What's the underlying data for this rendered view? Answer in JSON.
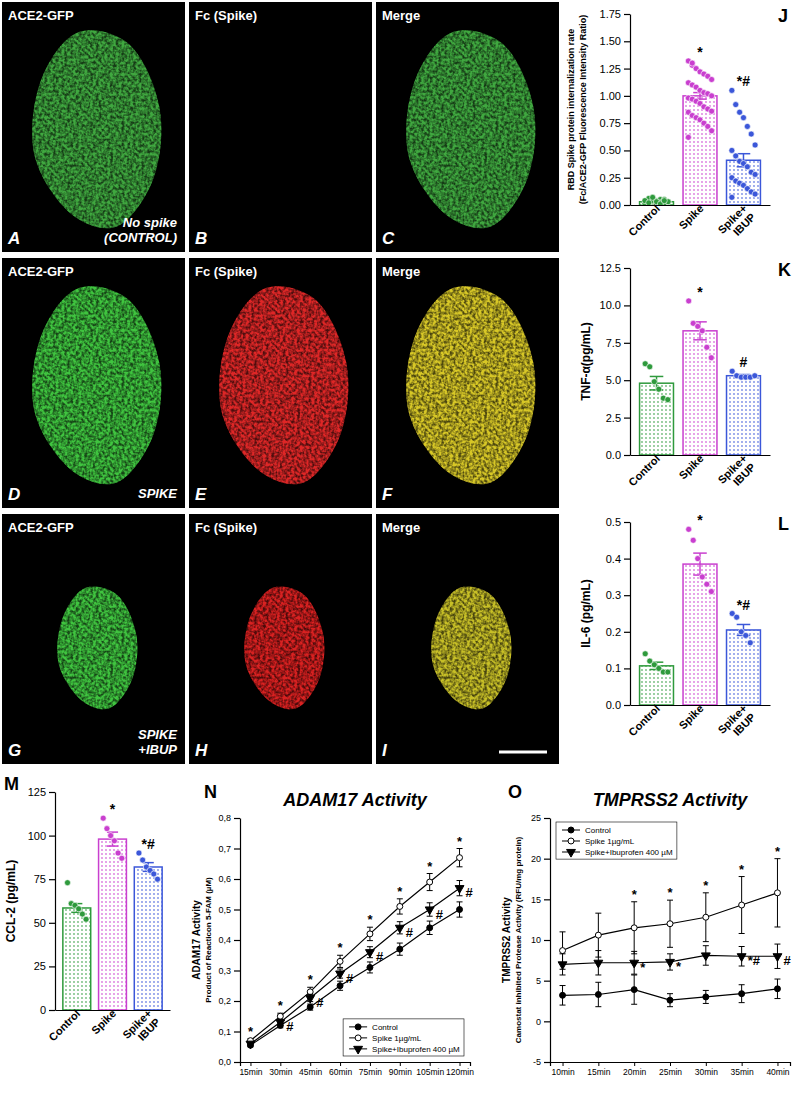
{
  "image_panels": [
    {
      "letter": "A",
      "channel": "ACE2-GFP",
      "caption": "No spike\n(CONTROL)"
    },
    {
      "letter": "B",
      "channel": "Fc (Spike)"
    },
    {
      "letter": "C",
      "channel": "Merge"
    },
    {
      "letter": "D",
      "channel": "ACE2-GFP",
      "caption": "SPIKE"
    },
    {
      "letter": "E",
      "channel": "Fc (Spike)"
    },
    {
      "letter": "F",
      "channel": "Merge"
    },
    {
      "letter": "G",
      "channel": "ACE2-GFP",
      "caption": "SPIKE\n+IBUP"
    },
    {
      "letter": "H",
      "channel": "Fc (Spike)"
    },
    {
      "letter": "I",
      "channel": "Merge"
    }
  ],
  "chart_data": [
    {
      "type": "bar",
      "annotations": [
        "J"
      ],
      "y_label": [
        "RBD Spike protein internalization rate",
        "(Fc/ACE2-GFP Fluorescence Intensity Ratio)"
      ],
      "categories": [
        "Control",
        "Spike",
        "Spike+\nIBUP"
      ],
      "values": [
        0.03,
        1.0,
        0.41
      ],
      "errors": [
        0.005,
        0.03,
        0.06
      ],
      "points": [
        [
          0.01,
          0.02,
          0.03,
          0.04,
          0.05,
          0.02,
          0.03,
          0.01,
          0.06,
          0.04,
          0.03,
          0.02,
          0.05,
          0.03,
          0.04,
          0.02,
          0.07,
          0.03,
          0.01,
          0.04
        ],
        [
          1.32,
          1.28,
          1.25,
          1.22,
          1.2,
          1.18,
          1.15,
          1.12,
          1.1,
          1.08,
          1.05,
          1.03,
          1.02,
          1.0,
          0.98,
          0.97,
          0.95,
          0.93,
          0.9,
          0.88,
          0.86,
          0.85,
          0.82,
          0.8,
          0.78,
          0.75,
          0.72,
          0.68,
          0.62,
          1.3
        ],
        [
          1.05,
          0.92,
          0.85,
          0.8,
          0.72,
          0.65,
          0.55,
          0.5,
          0.45,
          0.4,
          0.38,
          0.35,
          0.3,
          0.28,
          0.25,
          0.22,
          0.2,
          0.18,
          0.15,
          0.12,
          0.1,
          0.07
        ]
      ],
      "colors": [
        "#2e9a3c",
        "#c93fcf",
        "#3b57d9"
      ],
      "significance": [
        null,
        "*",
        "*#"
      ],
      "ylim": [
        0,
        1.75
      ],
      "yticks": [
        {
          "value": 0,
          "label": "0.00"
        },
        0.25,
        {
          "value": 0.5,
          "label": "0.50"
        },
        0.75,
        {
          "value": 1,
          "label": "1.00"
        },
        1.25,
        {
          "value": 1.5,
          "label": "1.50"
        },
        1.75
      ]
    },
    {
      "type": "bar",
      "annotations": [
        "K"
      ],
      "y_label": [
        "TNF-α(pg/mL)"
      ],
      "categories": [
        "Control",
        "Spike",
        "Spike+\nIBUP"
      ],
      "values": [
        4.8,
        8.3,
        5.3
      ],
      "errors": [
        0.45,
        0.6,
        0.08
      ],
      "points": [
        [
          6.1,
          5.9,
          4.9,
          4.4,
          3.8,
          3.7
        ],
        [
          10.3,
          8.8,
          8.6,
          8.3,
          7.2,
          6.5
        ],
        [
          5.6,
          5.3,
          5.2,
          5.2,
          5.2,
          5.3
        ]
      ],
      "colors": [
        "#2e9a3c",
        "#c93fcf",
        "#3b57d9"
      ],
      "significance": [
        null,
        "*",
        "#"
      ],
      "ylim": [
        0,
        12.5
      ],
      "yticks": [
        {
          "value": 0,
          "label": "0.0"
        },
        2.5,
        {
          "value": 5,
          "label": "5.0"
        },
        7.5,
        {
          "value": 10,
          "label": "10.0"
        },
        12.5
      ]
    },
    {
      "type": "bar",
      "annotations": [
        "L"
      ],
      "y_label": [
        "IL-6 (pg/mL)"
      ],
      "categories": [
        "Control",
        "Spike",
        "Spike+\nIBUP"
      ],
      "values": [
        0.107,
        0.385,
        0.205
      ],
      "errors": [
        0.01,
        0.03,
        0.015
      ],
      "points": [
        [
          0.14,
          0.12,
          0.11,
          0.1,
          0.09,
          0.09
        ],
        [
          0.48,
          0.45,
          0.4,
          0.35,
          0.33,
          0.31
        ],
        [
          0.25,
          0.24,
          0.2,
          0.19,
          0.17
        ]
      ],
      "colors": [
        "#2e9a3c",
        "#c93fcf",
        "#3b57d9"
      ],
      "significance": [
        null,
        "*",
        "*#"
      ],
      "ylim": [
        0,
        0.5
      ],
      "yticks": [
        {
          "value": 0,
          "label": "0.0"
        },
        0.1,
        0.2,
        0.3,
        0.4,
        0.5
      ]
    },
    {
      "type": "bar",
      "annotations": [
        "M"
      ],
      "y_label": [
        "CCL-2 (pg/mL)"
      ],
      "categories": [
        "Control",
        "Spike",
        "Spike+\nIBUP"
      ],
      "values": [
        58.5,
        98,
        82
      ],
      "errors": [
        2.5,
        4,
        2.5
      ],
      "points": [
        [
          73,
          61,
          60,
          58,
          55,
          52
        ],
        [
          110,
          104,
          100,
          97,
          90,
          87
        ],
        [
          90,
          86,
          82,
          80,
          78,
          75
        ]
      ],
      "colors": [
        "#2e9a3c",
        "#c93fcf",
        "#3b57d9"
      ],
      "significance": [
        null,
        "*",
        "*#"
      ],
      "ylim": [
        0,
        125
      ],
      "yticks": [
        0,
        25,
        50,
        75,
        100,
        125
      ]
    },
    {
      "type": "line",
      "annotations": [
        "N"
      ],
      "title": "ADAM17 Activity",
      "y_label": [
        "ADAM17 Activity",
        "Product of Reacticon 5-FAM (µM)"
      ],
      "categories": [
        "15min",
        "30min",
        "45min",
        "60min",
        "75min",
        "90min",
        "105min",
        "120min"
      ],
      "series": [
        {
          "name": "Control",
          "color": "#000000",
          "marker": "circle",
          "line_style": "solid",
          "values": [
            0.055,
            0.12,
            0.18,
            0.25,
            0.31,
            0.37,
            0.44,
            0.5
          ],
          "errors": [
            0.005,
            0.008,
            0.01,
            0.015,
            0.018,
            0.02,
            0.022,
            0.025
          ]
        },
        {
          "name": "Spike 1µg/mL",
          "color": "#000000",
          "marker": "circle-open",
          "line_style": "solid",
          "values": [
            0.07,
            0.15,
            0.23,
            0.33,
            0.42,
            0.51,
            0.59,
            0.67
          ],
          "errors": [
            0.006,
            0.01,
            0.015,
            0.02,
            0.022,
            0.025,
            0.028,
            0.03
          ],
          "significance": [
            "*",
            "*",
            "*",
            "*",
            "*",
            "*",
            "*",
            "*"
          ]
        },
        {
          "name": "Spike+Ibuprofen 400 µM",
          "color": "#000000",
          "marker": "triangle-down",
          "line_style": "solid",
          "values": [
            0.06,
            0.13,
            0.21,
            0.29,
            0.36,
            0.44,
            0.5,
            0.57
          ],
          "errors": [
            0.005,
            0.01,
            0.012,
            0.015,
            0.018,
            0.02,
            0.022,
            0.025
          ],
          "significance": [
            null,
            "#",
            "#",
            "#",
            "#",
            "#",
            "#",
            "#"
          ]
        }
      ],
      "legend": "lower right",
      "ylim": [
        0,
        0.8
      ],
      "yticks": [
        {
          "value": 0,
          "label": "0,0"
        },
        {
          "value": 0.1,
          "label": "0,1"
        },
        {
          "value": 0.2,
          "label": "0,2"
        },
        {
          "value": 0.3,
          "label": "0,3"
        },
        {
          "value": 0.4,
          "label": "0,4"
        },
        {
          "value": 0.5,
          "label": "0,5"
        },
        {
          "value": 0.6,
          "label": "0,6"
        },
        {
          "value": 0.7,
          "label": "0,7"
        },
        {
          "value": 0.8,
          "label": "0,8"
        }
      ]
    },
    {
      "type": "line",
      "annotations": [
        "O"
      ],
      "title": "TMPRSS2 Activity",
      "y_label": [
        "TMPRSS2 Activity",
        "Camostat inhibited Protease Activity (RFU/mg protein)"
      ],
      "categories": [
        "10min",
        "15min",
        "20min",
        "25min",
        "30min",
        "35min",
        "40min"
      ],
      "series": [
        {
          "name": "Control",
          "color": "#000000",
          "marker": "circle",
          "line_style": "solid",
          "values": [
            3.2,
            3.3,
            3.9,
            2.6,
            3.0,
            3.4,
            4.0
          ],
          "errors": [
            1.2,
            1.5,
            1.8,
            0.8,
            0.8,
            1.1,
            1.2
          ]
        },
        {
          "name": "Spike 1µg/mL",
          "color": "#000000",
          "marker": "circle-open",
          "line_style": "solid",
          "values": [
            8.7,
            10.6,
            11.5,
            12.0,
            12.8,
            14.3,
            15.8
          ],
          "errors": [
            2.3,
            2.7,
            3.2,
            2.9,
            3.0,
            3.5,
            4.2
          ],
          "significance": [
            null,
            null,
            "*",
            "*",
            "*",
            "*",
            "*"
          ]
        },
        {
          "name": "Spike+Ibuprofen 400 µM",
          "color": "#000000",
          "marker": "triangle-down",
          "line_style": "solid",
          "values": [
            7.0,
            7.2,
            7.2,
            7.3,
            8.1,
            8.0,
            8.0
          ],
          "errors": [
            1.3,
            1.5,
            1.4,
            1.0,
            1.2,
            1.2,
            1.5
          ],
          "significance": [
            null,
            null,
            "*",
            "*",
            null,
            "*#",
            "#"
          ]
        }
      ],
      "legend": "upper left",
      "ylim": [
        -5,
        25
      ],
      "yticks": [
        -5,
        0,
        5,
        10,
        15,
        20,
        25
      ]
    }
  ]
}
